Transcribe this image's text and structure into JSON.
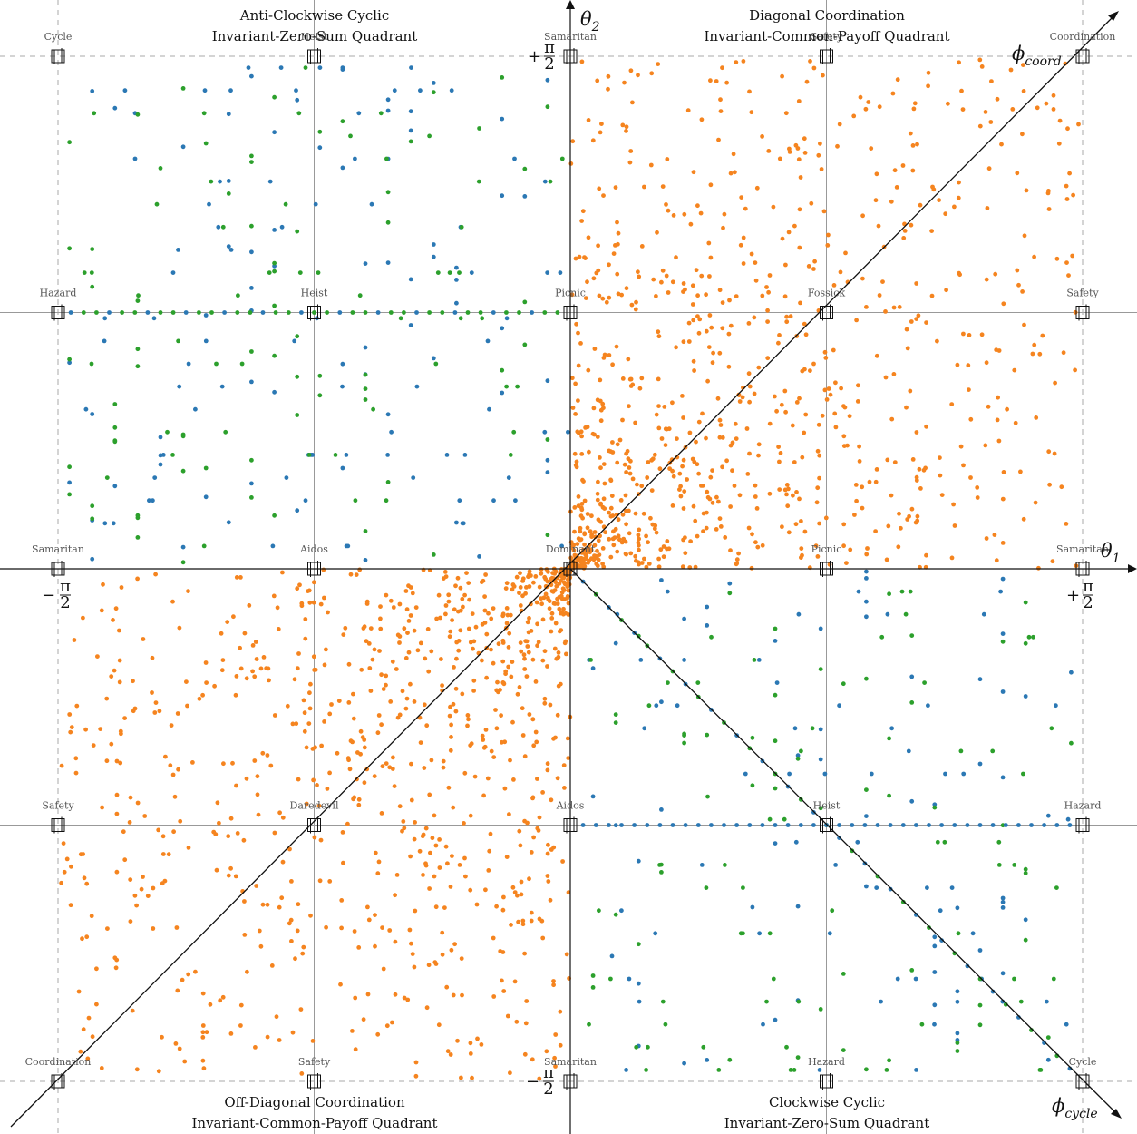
{
  "chart_data": {
    "type": "scatter",
    "x_axis": {
      "label": "θ",
      "subscript": "1",
      "range": [
        -1.5708,
        1.5708
      ]
    },
    "y_axis": {
      "label": "θ",
      "subscript": "2",
      "range": [
        -1.5708,
        1.5708
      ]
    },
    "ticks": {
      "x_neg": {
        "sign": "−",
        "num": "π",
        "den": "2"
      },
      "x_pos": {
        "sign": "+",
        "num": "π",
        "den": "2"
      },
      "y_pos": {
        "sign": "+",
        "num": "π",
        "den": "2"
      },
      "y_neg": {
        "sign": "−",
        "num": "π",
        "den": "2"
      }
    },
    "diagonals": {
      "coord": {
        "label": "ϕ",
        "subscript": "coord",
        "direction": [
          1,
          1
        ]
      },
      "cycle": {
        "label": "ϕ",
        "subscript": "cycle",
        "direction": [
          1,
          -1
        ]
      }
    },
    "quadrants": [
      {
        "position": "top-left",
        "title": [
          "Anti-Clockwise  Cyclic",
          "Invariant-Zero-Sum  Quadrant"
        ]
      },
      {
        "position": "top-right",
        "title": [
          "Diagonal  Coordination",
          "Invariant-Common-Payoff  Quadrant"
        ]
      },
      {
        "position": "bottom-left",
        "title": [
          "Off-Diagonal  Coordination",
          "Invariant-Common-Payoff  Quadrant"
        ]
      },
      {
        "position": "bottom-right",
        "title": [
          "Clockwise  Cyclic",
          "Invariant-Zero-Sum  Quadrant"
        ]
      }
    ],
    "grid_values": [
      -1.5708,
      -0.7854,
      0,
      0.7854,
      1.5708
    ],
    "game_labels": [
      {
        "name": "Cycle",
        "x": -1.5708,
        "y": 1.5708
      },
      {
        "name": "Heist",
        "x": -0.7854,
        "y": 1.5708
      },
      {
        "name": "Samaritan",
        "x": 0,
        "y": 1.5708
      },
      {
        "name": "Safety",
        "x": 0.7854,
        "y": 1.5708
      },
      {
        "name": "Coordination",
        "x": 1.5708,
        "y": 1.5708
      },
      {
        "name": "Hazard",
        "x": -1.5708,
        "y": 0.7854
      },
      {
        "name": "Heist",
        "x": -0.7854,
        "y": 0.7854
      },
      {
        "name": "Picnic",
        "x": 0,
        "y": 0.7854
      },
      {
        "name": "Fossick",
        "x": 0.7854,
        "y": 0.7854
      },
      {
        "name": "Safety",
        "x": 1.5708,
        "y": 0.7854
      },
      {
        "name": "Samaritan",
        "x": -1.5708,
        "y": 0
      },
      {
        "name": "Aidos",
        "x": -0.7854,
        "y": 0
      },
      {
        "name": "Dominant",
        "x": 0,
        "y": 0
      },
      {
        "name": "Picnic",
        "x": 0.7854,
        "y": 0
      },
      {
        "name": "Samaritan",
        "x": 1.5708,
        "y": 0
      },
      {
        "name": "Safety",
        "x": -1.5708,
        "y": -0.7854
      },
      {
        "name": "Daredevil",
        "x": -0.7854,
        "y": -0.7854
      },
      {
        "name": "Aidos",
        "x": 0,
        "y": -0.7854
      },
      {
        "name": "Heist",
        "x": 0.7854,
        "y": -0.7854
      },
      {
        "name": "Hazard",
        "x": 1.5708,
        "y": -0.7854
      },
      {
        "name": "Coordination",
        "x": -1.5708,
        "y": -1.5708
      },
      {
        "name": "Safety",
        "x": -0.7854,
        "y": -1.5708
      },
      {
        "name": "Samaritan",
        "x": 0,
        "y": -1.5708
      },
      {
        "name": "Hazard",
        "x": 0.7854,
        "y": -1.5708
      },
      {
        "name": "Cycle",
        "x": 1.5708,
        "y": -1.5708
      }
    ],
    "series_colors": {
      "orange": "#f5841f",
      "blue": "#2b78b4",
      "green": "#2ca02c"
    },
    "series": [
      {
        "color_key": "orange",
        "quadrants": [
          "top-right",
          "bottom-left"
        ],
        "distribution": "dense near origin, spreading to full quadrant",
        "approx_count": 1800
      },
      {
        "color_key": "blue",
        "quadrants": [
          "top-left",
          "bottom-right"
        ],
        "distribution": "grid-aligned rows/columns",
        "approx_count": 260
      },
      {
        "color_key": "green",
        "quadrants": [
          "top-left",
          "bottom-right"
        ],
        "distribution": "grid-aligned rows/columns",
        "approx_count": 230
      }
    ]
  }
}
